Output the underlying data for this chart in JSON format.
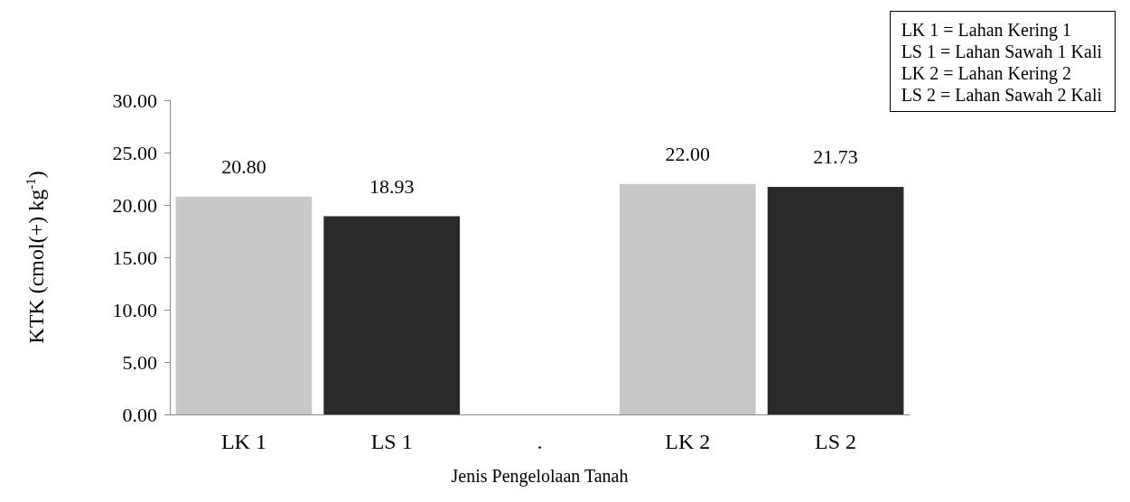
{
  "chart_data": {
    "type": "bar",
    "ylabel": "KTK (cmol(+) kg$^{-1}$)",
    "xlabel": "Jenis Pengelolaan Tanah",
    "categories": [
      "LK 1",
      "LS 1",
      ".",
      "LK 2",
      "LS 2"
    ],
    "values": [
      20.8,
      18.93,
      null,
      22.0,
      21.73
    ],
    "colors": [
      "#c8c8c8",
      "#2a2a2a",
      null,
      "#c8c8c8",
      "#2a2a2a"
    ],
    "value_labels": [
      "20.80",
      "18.93",
      null,
      "22.00",
      "21.73"
    ],
    "ylim": [
      0,
      30
    ],
    "yticks": [
      {
        "value": 0,
        "label": "0.00"
      },
      {
        "value": 5,
        "label": "5.00"
      },
      {
        "value": 10,
        "label": "10.00"
      },
      {
        "value": 15,
        "label": "15.00"
      },
      {
        "value": 20,
        "label": "20.00"
      },
      {
        "value": 25,
        "label": "25.00"
      },
      {
        "value": 30,
        "label": "30.00"
      }
    ],
    "grid": false,
    "annotations": [
      "LK 1 = Lahan Kering 1",
      "LS 1 = Lahan Sawah 1 Kali",
      "LK 2 = Lahan Kering 2",
      "LS 2 = Lahan Sawah 2 Kali"
    ]
  }
}
